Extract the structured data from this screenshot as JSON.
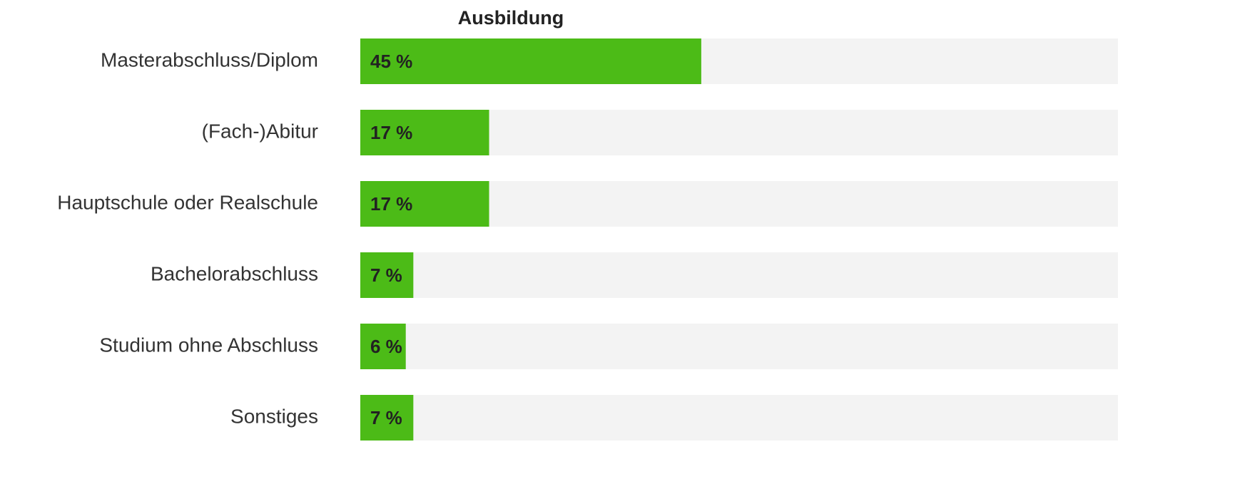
{
  "chart_data": {
    "type": "bar",
    "orientation": "horizontal",
    "title": "Ausbildung",
    "categories": [
      "Masterabschluss/Diplom",
      "(Fach-)Abitur",
      "Hauptschule oder Realschule",
      "Bachelorabschluss",
      "Studium ohne Abschluss",
      "Sonstiges"
    ],
    "values": [
      45,
      17,
      17,
      7,
      6,
      7
    ],
    "value_labels": [
      "45 %",
      "17 %",
      "17 %",
      "7 %",
      "6 %",
      "7 %"
    ],
    "color": "#4cbb17",
    "track_color": "#f3f3f3",
    "xlim": [
      0,
      100
    ]
  }
}
